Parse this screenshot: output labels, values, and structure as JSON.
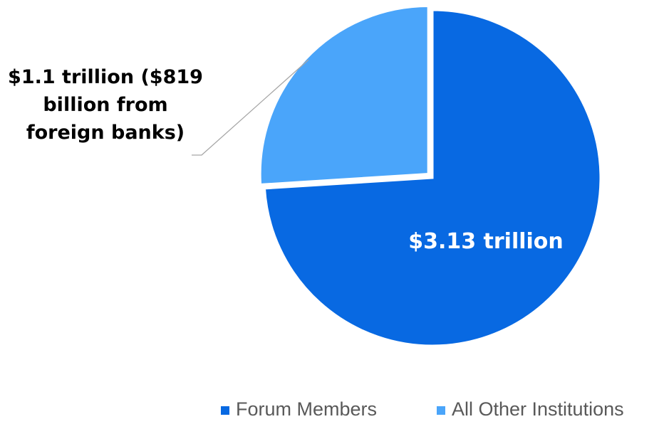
{
  "chart_data": {
    "type": "pie",
    "title": "",
    "series": [
      {
        "name": "Forum Members",
        "value": 3.13,
        "label": "$3.13 trillion",
        "color": "#0869E2"
      },
      {
        "name": "All Other Institutions",
        "value": 1.1,
        "label_lines": [
          "$1.1 trillion ($819",
          "billion from",
          "foreign banks)"
        ],
        "color": "#4AA5FA"
      }
    ],
    "units": "trillion USD",
    "start_angle": "12 o'clock",
    "direction": "clockwise",
    "exploded_slice": "All Other Institutions",
    "legend": {
      "position": "bottom-right",
      "entries": [
        "Forum Members",
        "All Other Institutions"
      ]
    }
  }
}
